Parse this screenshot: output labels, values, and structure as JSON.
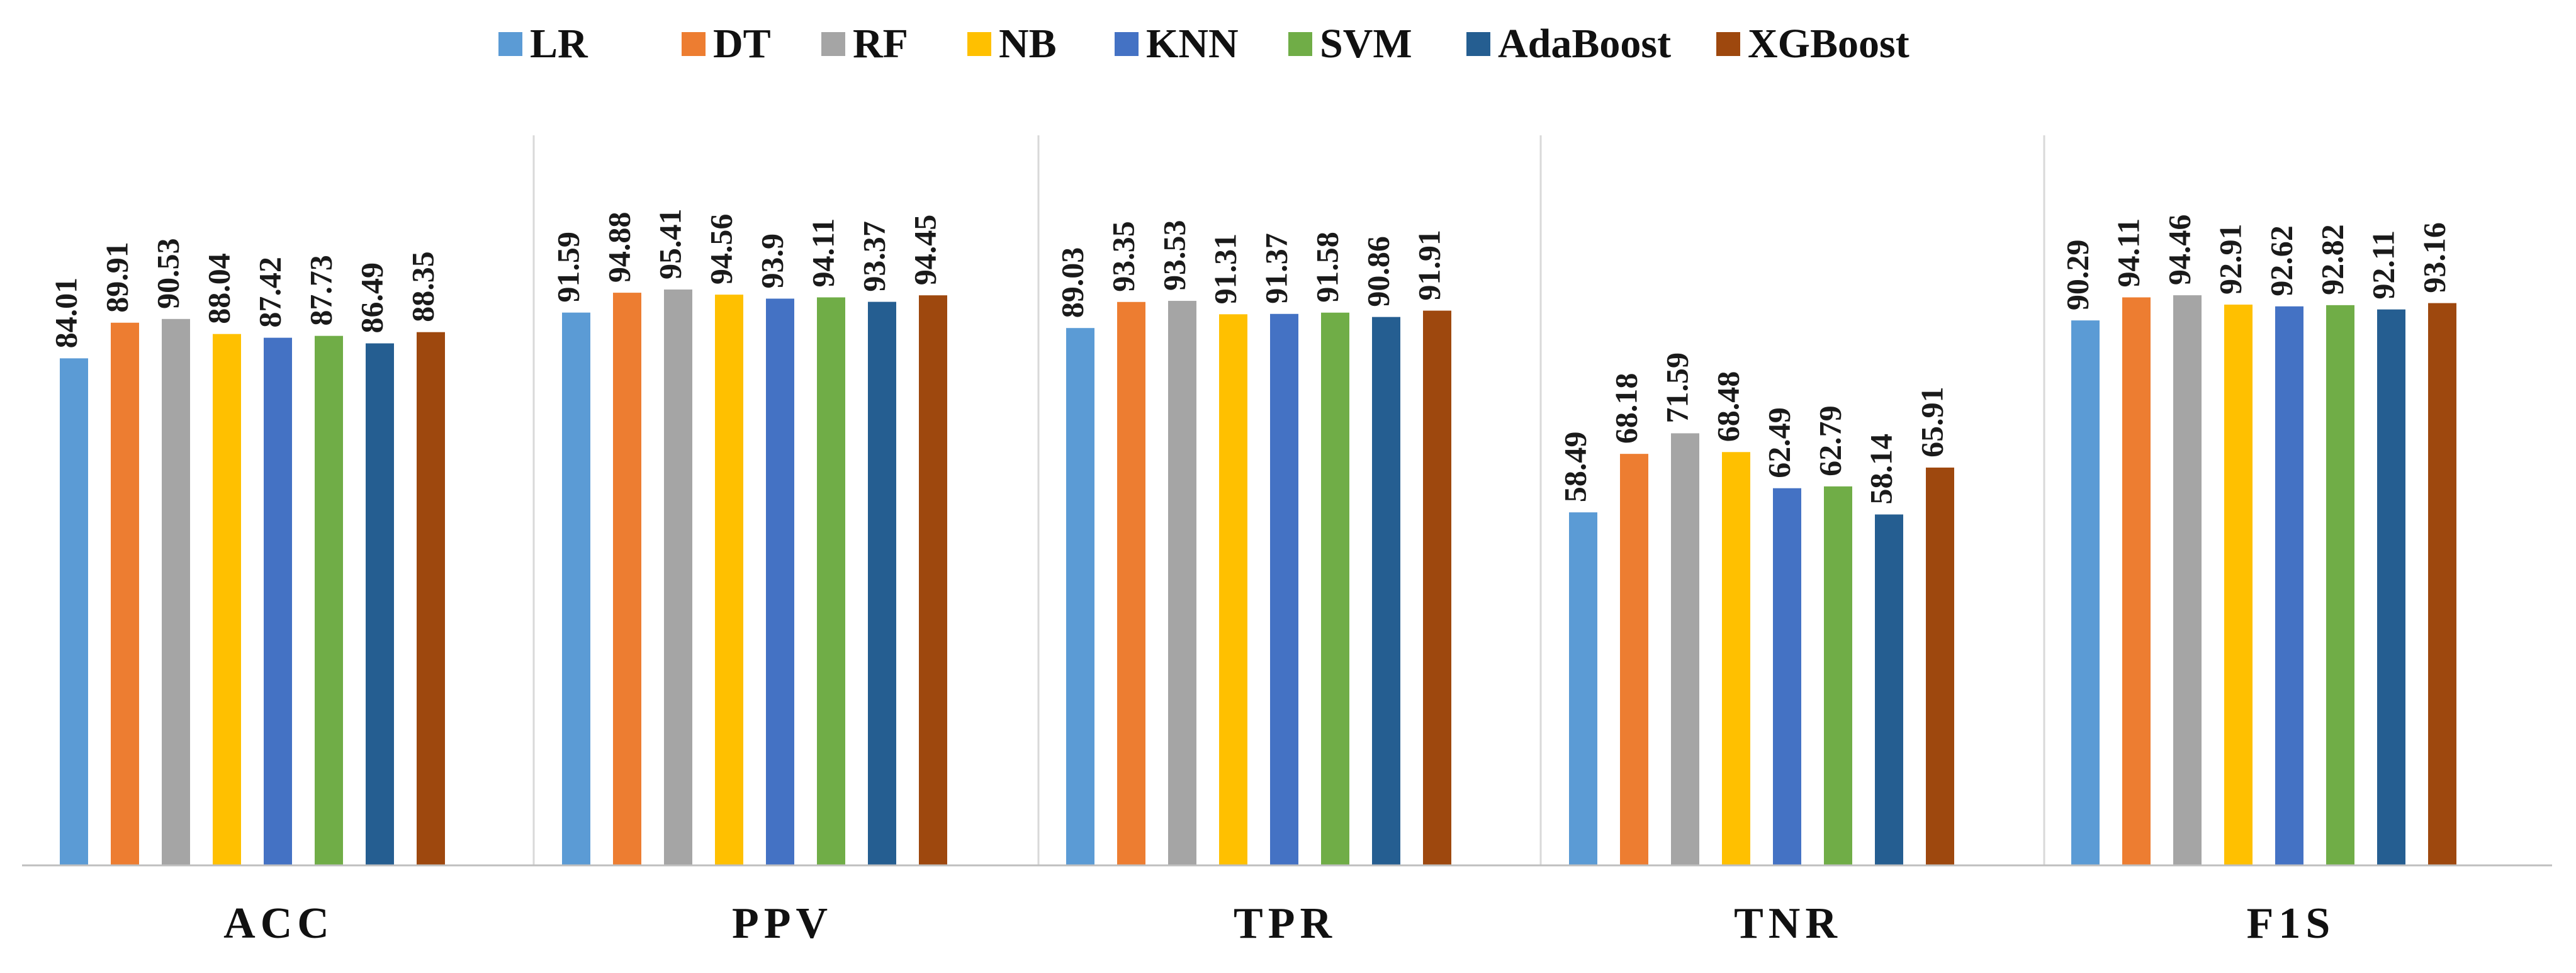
{
  "chart_data": {
    "type": "bar",
    "title": "",
    "xlabel": "",
    "ylabel": "",
    "ylim": [
      0,
      100
    ],
    "grid": false,
    "legend": "top",
    "categories": [
      "ACC",
      "PPV",
      "TPR",
      "TNR",
      "F1S"
    ],
    "series": [
      {
        "name": "LR",
        "color": "#5B9BD5",
        "values": [
          84.01,
          91.59,
          89.03,
          58.49,
          90.29
        ]
      },
      {
        "name": "DT",
        "color": "#ED7D31",
        "values": [
          89.91,
          94.88,
          93.35,
          68.18,
          94.11
        ]
      },
      {
        "name": "RF",
        "color": "#A5A5A5",
        "values": [
          90.53,
          95.41,
          93.53,
          71.59,
          94.46
        ]
      },
      {
        "name": "NB",
        "color": "#FFC000",
        "values": [
          88.04,
          94.56,
          91.31,
          68.48,
          92.91
        ]
      },
      {
        "name": "KNN",
        "color": "#4472C4",
        "values": [
          87.42,
          93.9,
          91.37,
          62.49,
          92.62
        ]
      },
      {
        "name": "SVM",
        "color": "#70AD47",
        "values": [
          87.73,
          94.11,
          91.58,
          62.79,
          92.82
        ]
      },
      {
        "name": "AdaBoost",
        "color": "#255E91",
        "values": [
          86.49,
          93.37,
          90.86,
          58.14,
          92.11
        ]
      },
      {
        "name": "XGBoost",
        "color": "#9E480E",
        "values": [
          88.35,
          94.45,
          91.91,
          65.91,
          93.16
        ]
      }
    ]
  }
}
